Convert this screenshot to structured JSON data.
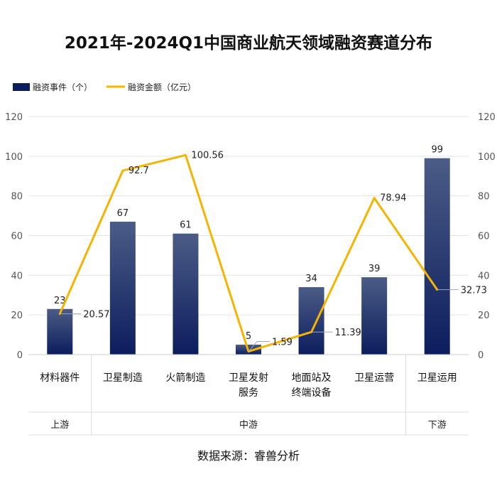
{
  "chart_data": {
    "type": "bar",
    "title": "2021年-2024Q1中国商业航天领域融资赛道分布",
    "categories": [
      "材料器件",
      "卫星制造",
      "火箭制造",
      "卫星发射服务",
      "地面站及终端设备",
      "卫星运营",
      "卫星运用"
    ],
    "category_lines": [
      [
        "材料器件"
      ],
      [
        "卫星制造"
      ],
      [
        "火箭制造"
      ],
      [
        "卫星发射",
        "服务"
      ],
      [
        "地面站及",
        "终端设备"
      ],
      [
        "卫星运营"
      ],
      [
        "卫星运用"
      ]
    ],
    "series": [
      {
        "name": "融资事件（个）",
        "kind": "bar",
        "values": [
          23,
          67,
          61,
          5,
          34,
          39,
          99
        ],
        "labels": [
          "23",
          "67",
          "61",
          "5",
          "34",
          "39",
          "99"
        ]
      },
      {
        "name": "融资金额（亿元）",
        "kind": "line",
        "values": [
          20.57,
          92.7,
          100.56,
          1.59,
          11.39,
          78.94,
          32.73
        ],
        "labels": [
          "20.57",
          "92.7",
          "100.56",
          "1.59",
          "11.39",
          "78.94",
          "32.73"
        ]
      }
    ],
    "ylim": [
      0,
      120
    ],
    "yticks": [
      "0",
      "20",
      "40",
      "60",
      "80",
      "100",
      "120"
    ],
    "grid": true,
    "legend_position": "top-left",
    "segments": [
      {
        "label": "上游",
        "from": 0,
        "to": 0
      },
      {
        "label": "中游",
        "from": 1,
        "to": 5
      },
      {
        "label": "下游",
        "from": 6,
        "to": 6
      }
    ],
    "source": "数据来源：睿兽分析",
    "colors": {
      "bar_top": "#4b5c86",
      "bar_bottom": "#0c1d5e",
      "line": "#f5b400",
      "grid": "#e3e3e3",
      "leader": "#9aa5c0"
    }
  }
}
